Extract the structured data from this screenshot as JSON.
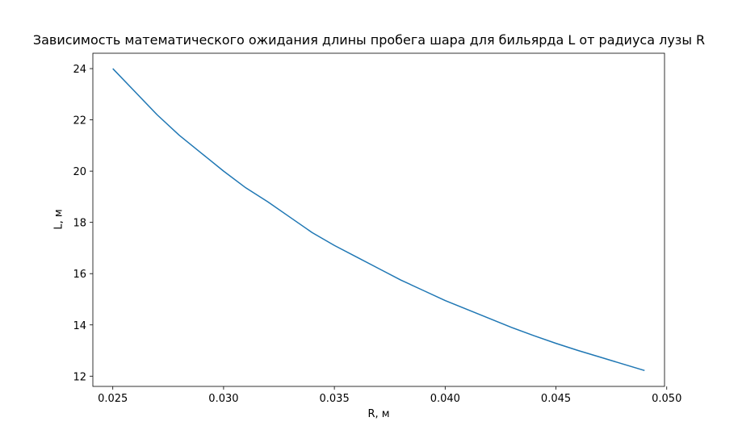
{
  "chart_data": {
    "type": "line",
    "title": "Зависимость математического ожидания длины пробега шара для бильярда L от радиуса лузы R",
    "xlabel": "R, м",
    "ylabel": "L, м",
    "xlim": [
      0.0241,
      0.0499
    ],
    "ylim": [
      11.6,
      24.6
    ],
    "xticks": [
      0.025,
      0.03,
      0.035,
      0.04,
      0.045,
      0.05
    ],
    "xtick_labels": [
      "0.025",
      "0.030",
      "0.035",
      "0.040",
      "0.045",
      "0.050"
    ],
    "yticks": [
      12,
      14,
      16,
      18,
      20,
      22,
      24
    ],
    "ytick_labels": [
      "12",
      "14",
      "16",
      "18",
      "20",
      "22",
      "24"
    ],
    "grid": false,
    "series": [
      {
        "color": "#1f77b4",
        "x": [
          0.025,
          0.026,
          0.027,
          0.028,
          0.029,
          0.03,
          0.031,
          0.032,
          0.033,
          0.034,
          0.035,
          0.036,
          0.037,
          0.038,
          0.039,
          0.04,
          0.041,
          0.042,
          0.043,
          0.044,
          0.045,
          0.046,
          0.047,
          0.048,
          0.049
        ],
        "y": [
          24.0,
          23.1,
          22.2,
          21.4,
          20.7,
          20.0,
          19.35,
          18.8,
          18.2,
          17.6,
          17.1,
          16.65,
          16.2,
          15.75,
          15.35,
          14.95,
          14.6,
          14.25,
          13.9,
          13.58,
          13.28,
          13.0,
          12.74,
          12.48,
          12.22
        ]
      }
    ]
  }
}
